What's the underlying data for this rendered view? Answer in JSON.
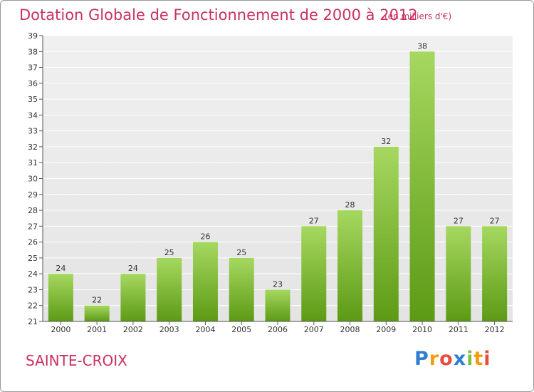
{
  "header": {
    "title": "Dotation Globale de Fonctionnement de 2000 à 2012",
    "unit_note": "(en milliers d'€)"
  },
  "footer": {
    "city": "SAINTE-CROIX",
    "logo_text": "Proxiti"
  },
  "colors": {
    "title": "#c8315f",
    "bar_top": "#9fd35a",
    "bar_bottom": "#5a9a12",
    "plot_bg": "#ececec",
    "grid": "#ffffff"
  },
  "chart_data": {
    "type": "bar",
    "categories": [
      "2000",
      "2001",
      "2002",
      "2003",
      "2004",
      "2005",
      "2006",
      "2007",
      "2008",
      "2009",
      "2010",
      "2011",
      "2012"
    ],
    "values": [
      24,
      22,
      24,
      25,
      26,
      25,
      23,
      27,
      28,
      32,
      38,
      27,
      27
    ],
    "ylim": [
      21,
      39
    ],
    "yticks": [
      21,
      22,
      23,
      24,
      25,
      26,
      27,
      28,
      29,
      30,
      31,
      32,
      33,
      34,
      35,
      36,
      37,
      38,
      39
    ],
    "xlabel": "",
    "ylabel": "",
    "grid": true,
    "data_labels": true
  }
}
